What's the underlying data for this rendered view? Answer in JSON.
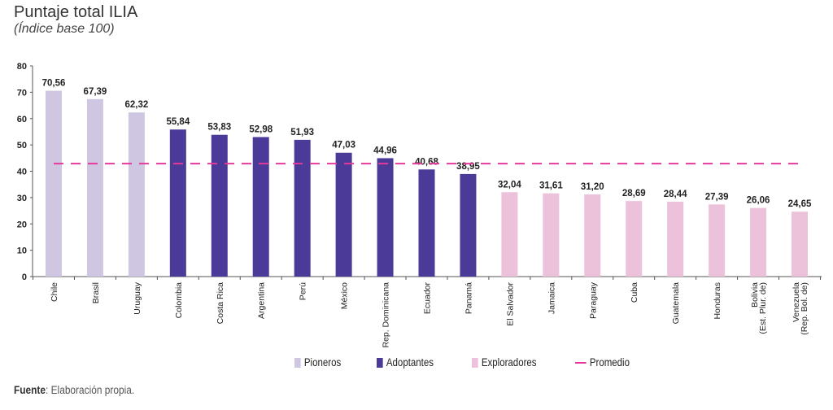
{
  "chart_data": {
    "type": "bar",
    "title": "Puntaje total ILIA",
    "subtitle": "(Índice base 100)",
    "ylim": [
      0,
      80
    ],
    "yticks": [
      0,
      10,
      20,
      30,
      40,
      50,
      60,
      70,
      80
    ],
    "grid": false,
    "legend_placement": "bottom",
    "categories": [
      "Chile",
      "Brasil",
      "Uruguay",
      "Colombia",
      "Costa Rica",
      "Argentina",
      "Perú",
      "México",
      "Rep. Dominicana",
      "Ecuador",
      "Panamá",
      "El Salvador",
      "Jamaica",
      "Paraguay",
      "Cuba",
      "Guatemala",
      "Honduras",
      "Bolivia (Est. Plur. de)",
      "Venezuela (Rep. Bol. de)"
    ],
    "category_lines": [
      [
        "Chile"
      ],
      [
        "Brasil"
      ],
      [
        "Uruguay"
      ],
      [
        "Colombia"
      ],
      [
        "Costa Rica"
      ],
      [
        "Argentina"
      ],
      [
        "Perú"
      ],
      [
        "México"
      ],
      [
        "Rep. Dominicana"
      ],
      [
        "Ecuador"
      ],
      [
        "Panamá"
      ],
      [
        "El Salvador"
      ],
      [
        "Jamaica"
      ],
      [
        "Paraguay"
      ],
      [
        "Cuba"
      ],
      [
        "Guatemala"
      ],
      [
        "Honduras"
      ],
      [
        "Bolivia",
        "(Est. Plur. de)"
      ],
      [
        "Venezuela",
        "(Rep. Bol. de)"
      ]
    ],
    "values": [
      70.56,
      67.39,
      62.32,
      55.84,
      53.83,
      52.98,
      51.93,
      47.03,
      44.96,
      40.68,
      38.95,
      32.04,
      31.61,
      31.2,
      28.69,
      28.44,
      27.39,
      26.06,
      24.65
    ],
    "value_labels": [
      "70,56",
      "67,39",
      "62,32",
      "55,84",
      "53,83",
      "52,98",
      "51,93",
      "47,03",
      "44,96",
      "40,68",
      "38,95",
      "32,04",
      "31,61",
      "31,20",
      "28,69",
      "28,44",
      "27,39",
      "26,06",
      "24,65"
    ],
    "groups": [
      "Pioneros",
      "Pioneros",
      "Pioneros",
      "Adoptantes",
      "Adoptantes",
      "Adoptantes",
      "Adoptantes",
      "Adoptantes",
      "Adoptantes",
      "Adoptantes",
      "Adoptantes",
      "Exploradores",
      "Exploradores",
      "Exploradores",
      "Exploradores",
      "Exploradores",
      "Exploradores",
      "Exploradores",
      "Exploradores"
    ],
    "series": [
      {
        "name": "Pioneros",
        "color": "#cfc6e2"
      },
      {
        "name": "Adoptantes",
        "color": "#4b3a97"
      },
      {
        "name": "Exploradores",
        "color": "#ecc2db"
      }
    ],
    "reference_line": {
      "name": "Promedio",
      "value": 42.9,
      "color": "#e6399b",
      "style": "dashed"
    }
  },
  "source": {
    "label": "Fuente",
    "text": ": Elaboración propia."
  }
}
